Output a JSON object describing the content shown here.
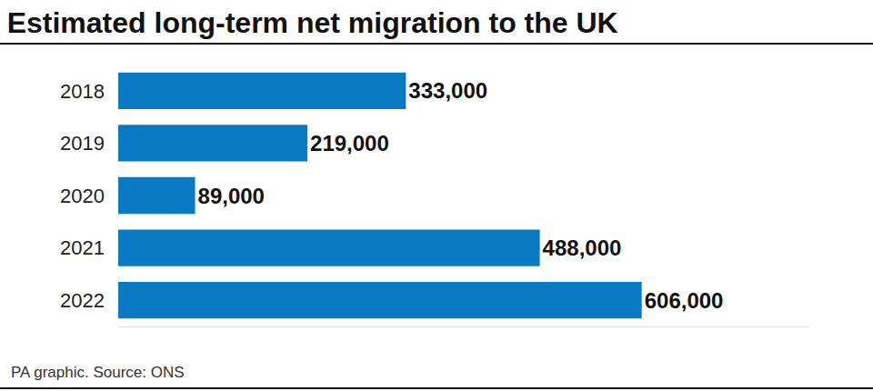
{
  "chart_data": {
    "type": "bar",
    "orientation": "horizontal",
    "title": "Estimated long-term net migration to the UK",
    "annotations": [
      "PA graphic. Source: ONS"
    ],
    "categories": [
      "2018",
      "2019",
      "2020",
      "2021",
      "2022"
    ],
    "values": [
      333000,
      219000,
      89000,
      488000,
      606000
    ],
    "value_labels": [
      "333,000",
      "219,000",
      "89,000",
      "488,000",
      "606,000"
    ],
    "color": "#0a7bc2",
    "xlim": [
      0,
      800000
    ],
    "xticks": [],
    "grid": false,
    "data_labels": true,
    "tick_labels": "y"
  }
}
